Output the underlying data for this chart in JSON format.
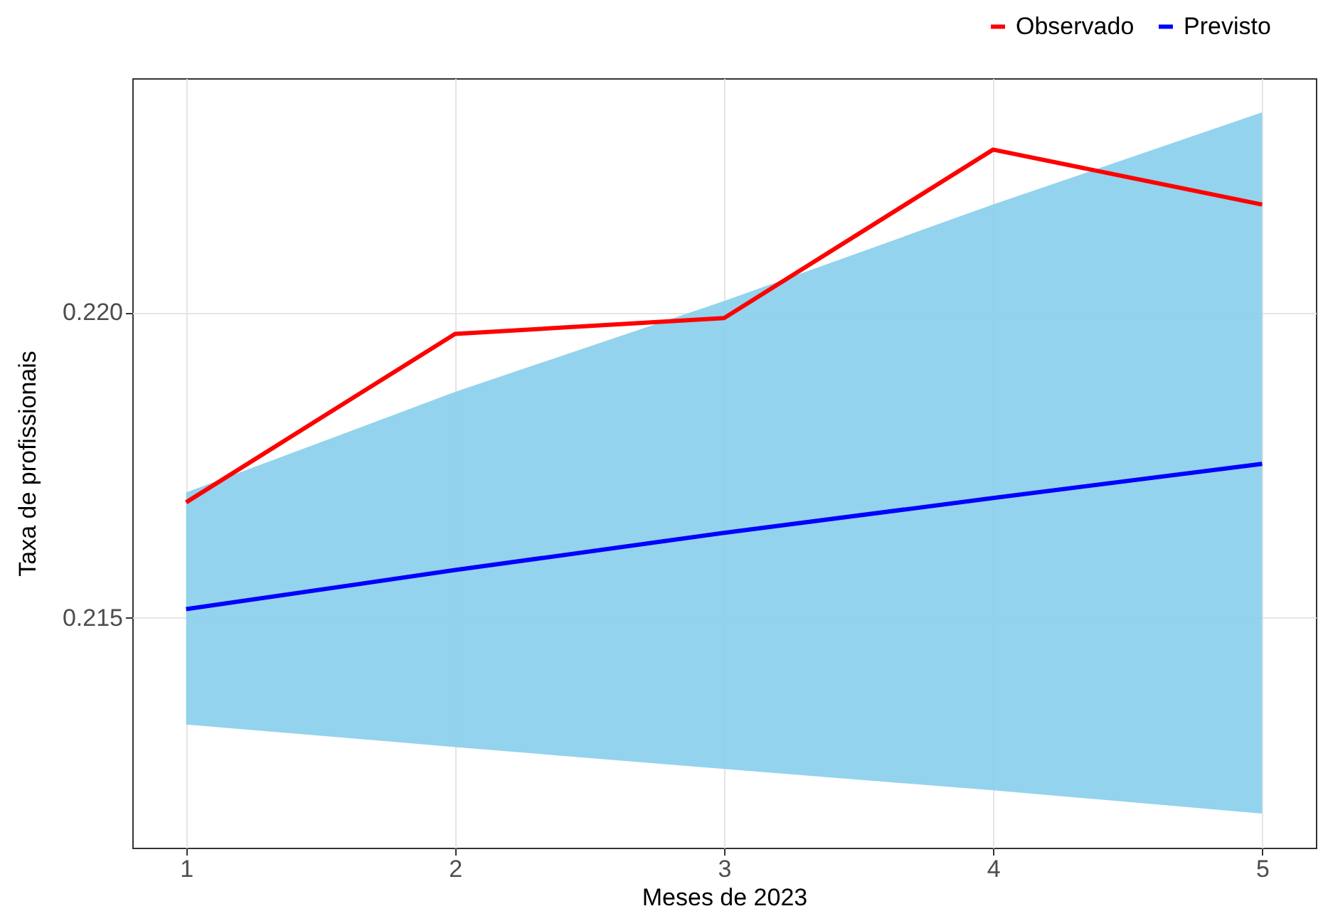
{
  "chart_data": {
    "type": "line",
    "xlabel": "Meses de 2023",
    "ylabel": "Taxa de profissionais",
    "x": [
      1,
      2,
      3,
      4,
      5
    ],
    "series": [
      {
        "name": "Observado",
        "color": "#ff0000",
        "values": [
          0.21689,
          0.21965,
          0.21991,
          0.22267,
          0.22177
        ]
      },
      {
        "name": "Previsto",
        "color": "#0000ff",
        "values": [
          0.21514,
          0.21578,
          0.21639,
          0.21696,
          0.21752
        ],
        "lower": [
          0.21325,
          0.21288,
          0.21252,
          0.21217,
          0.21179
        ],
        "upper": [
          0.21705,
          0.2187,
          0.22019,
          0.22177,
          0.22328
        ]
      }
    ],
    "xlim": [
      0.8,
      5.2
    ],
    "xticks": [
      1,
      2,
      3,
      4,
      5
    ],
    "ylim": [
      0.21123,
      0.22384
    ],
    "yticks": [
      {
        "value": 0.215,
        "label": "0.215"
      },
      {
        "value": 0.22,
        "label": "0.220"
      }
    ],
    "grid": true,
    "legend": "top right",
    "line_style": "solid",
    "marker": "none"
  }
}
